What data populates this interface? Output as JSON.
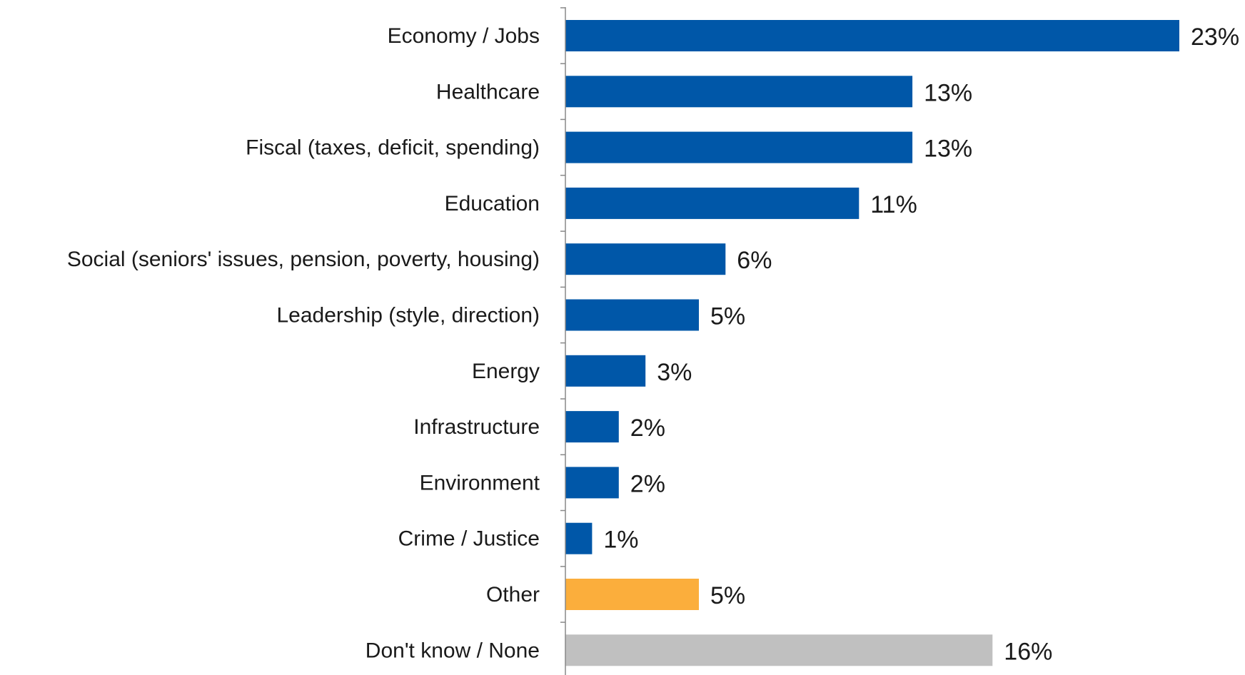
{
  "chart_data": {
    "type": "bar",
    "orientation": "horizontal",
    "categories": [
      "Economy / Jobs",
      "Healthcare",
      "Fiscal (taxes, deficit, spending)",
      "Education",
      "Social (seniors' issues, pension, poverty, housing)",
      "Leadership (style, direction)",
      "Energy",
      "Infrastructure",
      "Environment",
      "Crime / Justice",
      "Other",
      "Don't know / None"
    ],
    "values": [
      23,
      13,
      13,
      11,
      6,
      5,
      3,
      2,
      2,
      1,
      5,
      16
    ],
    "value_labels": [
      "23%",
      "13%",
      "13%",
      "11%",
      "6%",
      "5%",
      "3%",
      "2%",
      "2%",
      "1%",
      "5%",
      "16%"
    ],
    "bar_colors": [
      "#0057a8",
      "#0057a8",
      "#0057a8",
      "#0057a8",
      "#0057a8",
      "#0057a8",
      "#0057a8",
      "#0057a8",
      "#0057a8",
      "#0057a8",
      "#fbae3c",
      "#c0c0c0"
    ],
    "axis_color": "#888888",
    "xlim": [
      0,
      23
    ],
    "grid": false,
    "legend": false
  }
}
